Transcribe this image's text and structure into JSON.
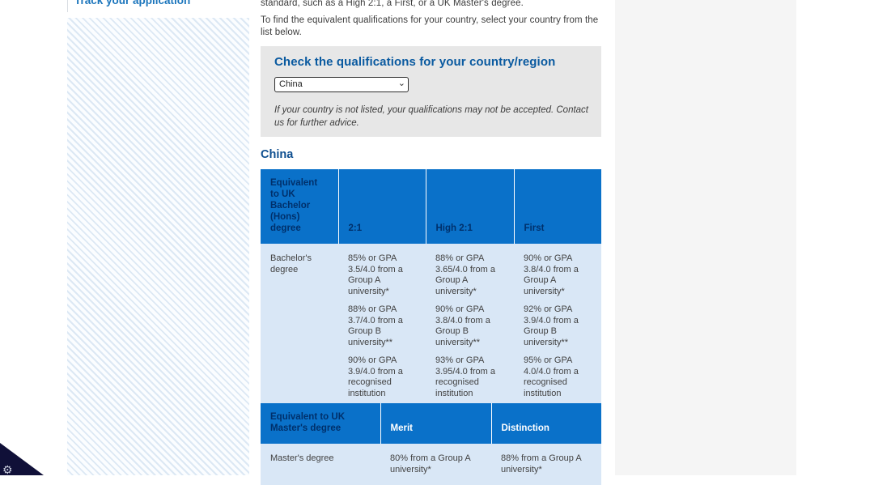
{
  "sidebar": {
    "link_label": "Track your application"
  },
  "intro": {
    "p1": "standard, such as a High 2:1, a First, or a UK Master's degree.",
    "p2": "To find the equivalent qualifications for your country, select your country from the list below."
  },
  "country_box": {
    "heading": "Check the qualifications for your country/region",
    "selected_country": "China",
    "options": [
      "China"
    ],
    "note": "If your country is not listed, your qualifications may not be accepted. Contact us for further advice."
  },
  "country_heading": "China",
  "colors": {
    "accent_blue": "#0a71c9",
    "header_text_navy": "#00306b",
    "table_body_blue": "#d9e7f6",
    "link_blue": "#1b75bc"
  },
  "icons": {
    "select_chevron": "⌄",
    "corner_gear": "⚙"
  },
  "tables": [
    {
      "headers": [
        "Equivalent to UK Bachelor (Hons) degree",
        "2:1",
        "High 2:1",
        "First"
      ],
      "rows": [
        {
          "label": "Bachelor's degree",
          "cells": [
            [
              "85% or GPA 3.5/4.0 from a Group A university*",
              "88% or GPA 3.7/4.0 from a Group B university**",
              "90% or GPA 3.9/4.0 from a recognised institution"
            ],
            [
              "88% or GPA 3.65/4.0 from a Group A university*",
              "90% or GPA 3.8/4.0 from a Group B university**",
              "93% or GPA 3.95/4.0 from a recognised institution"
            ],
            [
              "90% or GPA 3.8/4.0 from a Group A university*",
              "92% or GPA 3.9/4.0 from a Group B university**",
              "95% or GPA 4.0/4.0 from a recognised institution"
            ]
          ]
        }
      ]
    },
    {
      "headers": [
        "Equivalent to UK Master's degree",
        "Merit",
        "Distinction"
      ],
      "rows": [
        {
          "label": "Master's degree",
          "cells": [
            [
              "80% from a Group A university*"
            ],
            [
              "88% from a Group A university*"
            ]
          ]
        }
      ]
    }
  ]
}
